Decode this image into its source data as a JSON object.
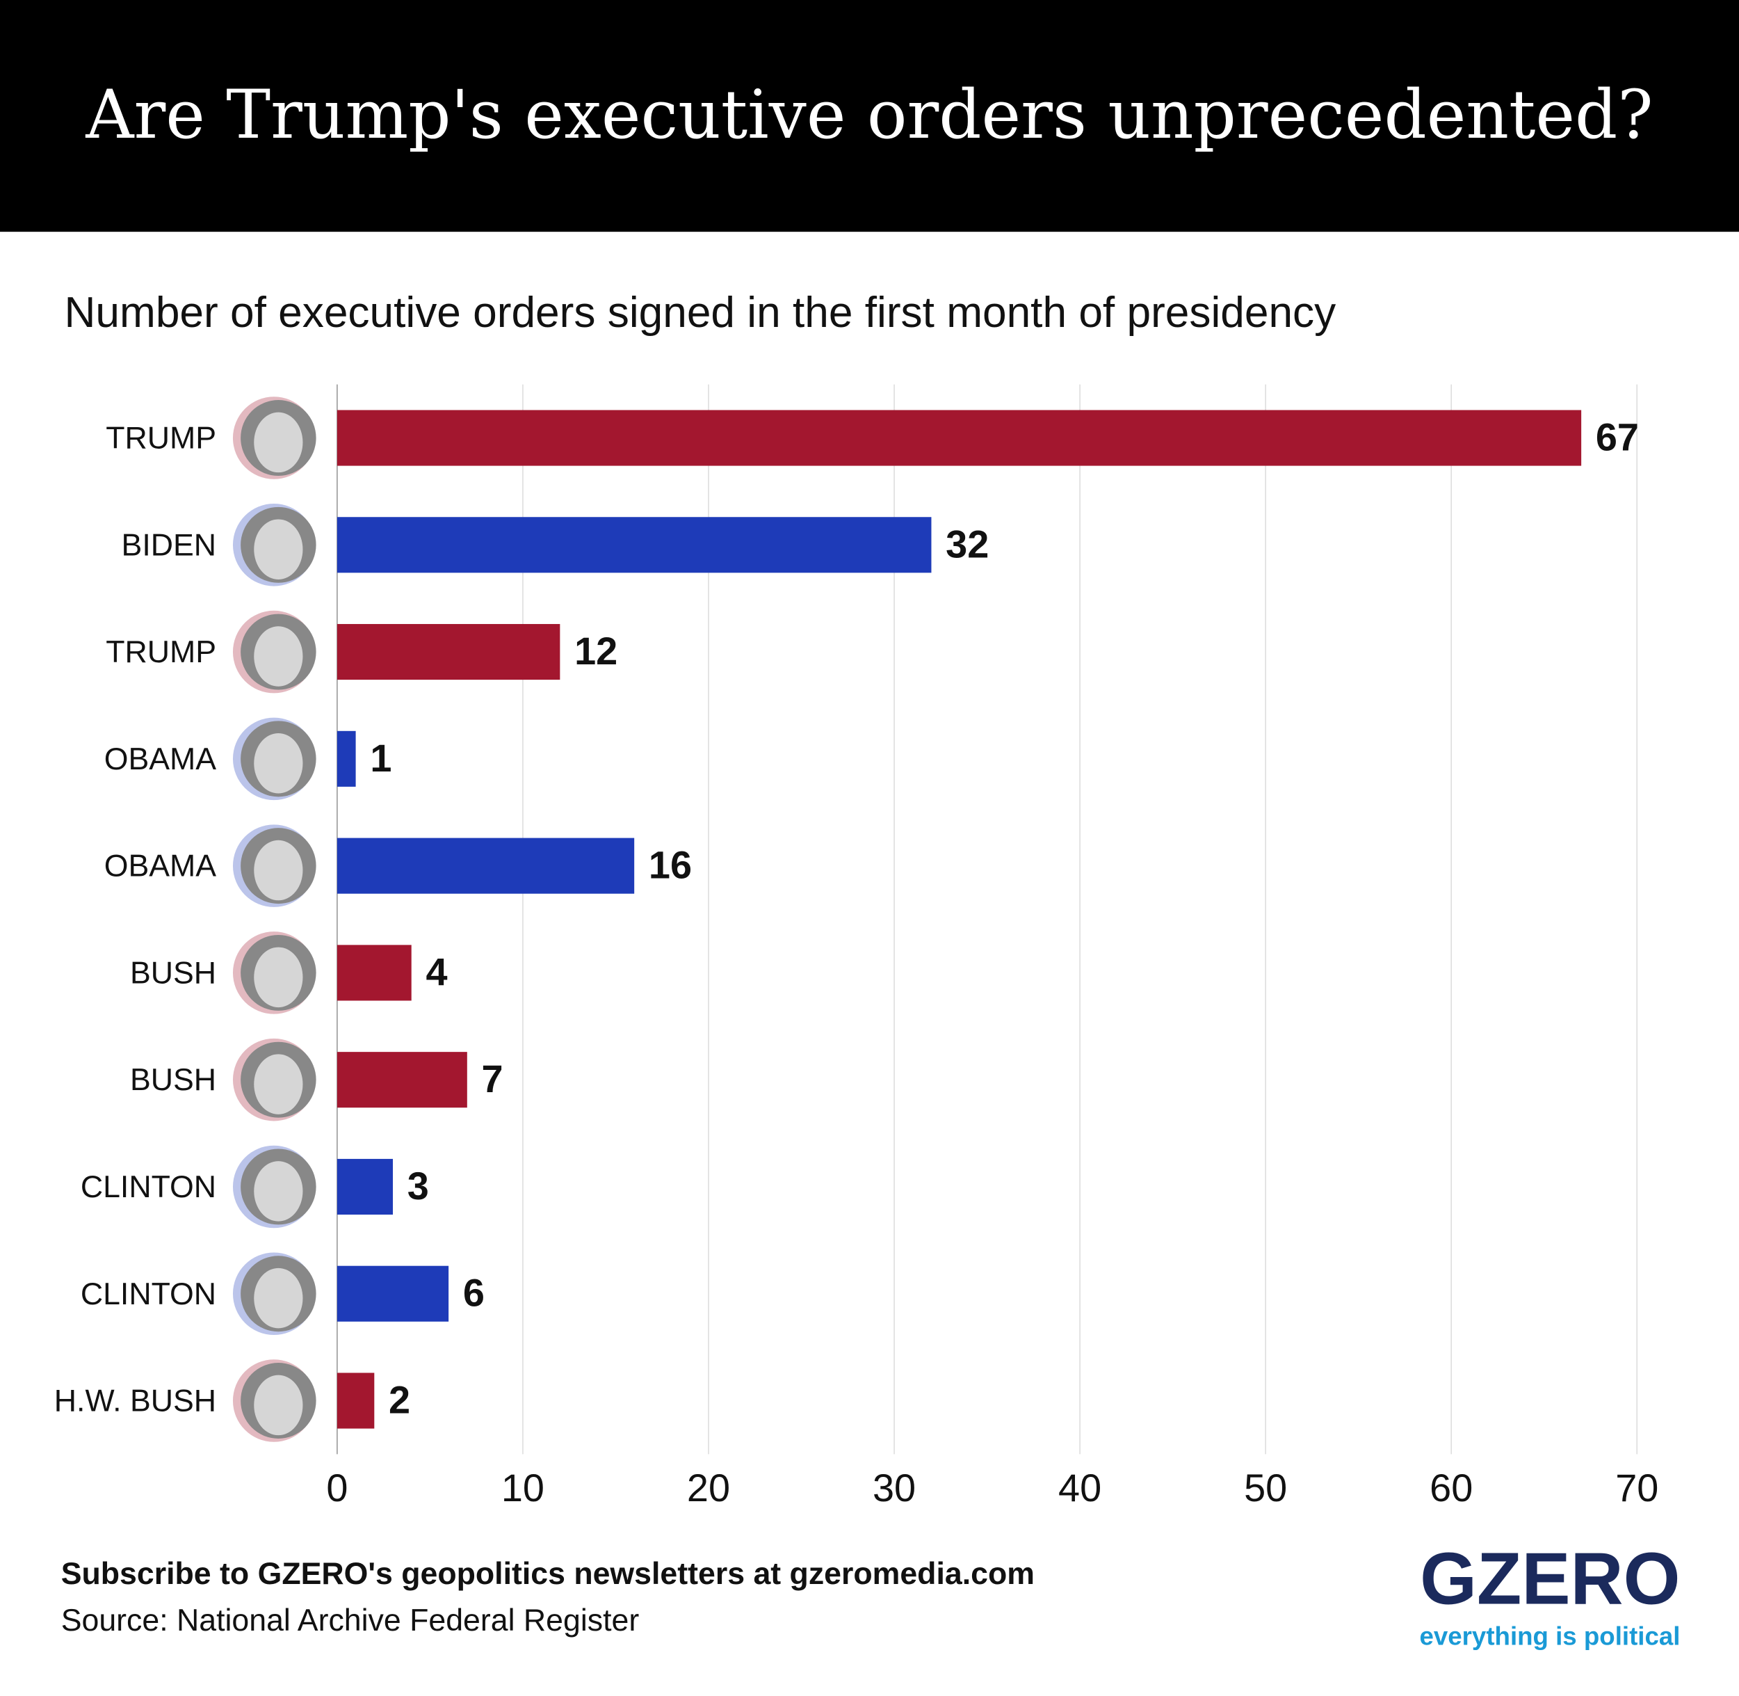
{
  "chart_data": {
    "type": "bar",
    "orientation": "horizontal",
    "title": "Are Trump's executive orders unprecedented?",
    "subtitle": "Number of executive orders signed in the first month of presidency",
    "categories": [
      "TRUMP",
      "BIDEN",
      "TRUMP",
      "OBAMA",
      "OBAMA",
      "BUSH",
      "BUSH",
      "CLINTON",
      "CLINTON",
      "H.W. BUSH"
    ],
    "values": [
      67,
      32,
      12,
      1,
      16,
      4,
      7,
      3,
      6,
      2
    ],
    "colors": [
      "#a3172f",
      "#1e3bb8",
      "#a3172f",
      "#1e3bb8",
      "#1e3bb8",
      "#a3172f",
      "#a3172f",
      "#1e3bb8",
      "#1e3bb8",
      "#a3172f"
    ],
    "xlim": [
      0,
      70
    ],
    "xticks": [
      0,
      10,
      20,
      30,
      40,
      50,
      60,
      70
    ],
    "grid": true,
    "note": "Subscribe to GZERO's geopolitics newsletters at gzeromedia.com",
    "source": "Source: National Archive Federal Register",
    "brand": {
      "name": "GZERO",
      "tagline": "everything is political"
    }
  }
}
